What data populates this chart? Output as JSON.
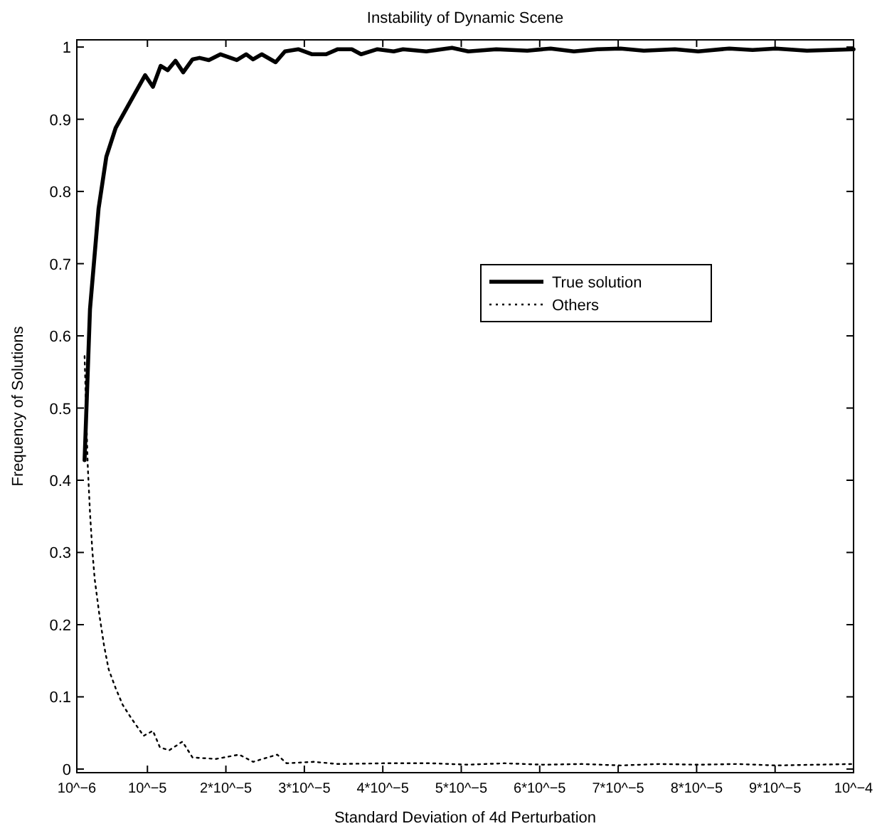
{
  "chart_data": {
    "type": "line",
    "title": "Instability of Dynamic Scene",
    "xlabel": "Standard Deviation of 4d Perturbation",
    "ylabel": "Frequency of Solutions",
    "xlim": [
      1e-06,
      0.0001
    ],
    "xticks": [
      {
        "value": 1e-06,
        "label": "10^−6"
      },
      {
        "value": 1e-05,
        "label": "10^−5"
      },
      {
        "value": 2e-05,
        "label": "2*10^−5"
      },
      {
        "value": 3e-05,
        "label": "3*10^−5"
      },
      {
        "value": 4e-05,
        "label": "4*10^−5"
      },
      {
        "value": 5e-05,
        "label": "5*10^−5"
      },
      {
        "value": 6e-05,
        "label": "6*10^−5"
      },
      {
        "value": 7e-05,
        "label": "7*10^−5"
      },
      {
        "value": 8e-05,
        "label": "8*10^−5"
      },
      {
        "value": 9e-05,
        "label": "9*10^−5"
      },
      {
        "value": 0.0001,
        "label": "10^−4"
      }
    ],
    "ylim": [
      -0.005,
      1.01
    ],
    "yticks": [
      0,
      0.1,
      0.2,
      0.3,
      0.4,
      0.5,
      0.6,
      0.7,
      0.8,
      0.9,
      1
    ],
    "grid": false,
    "legend": "center right",
    "series": [
      {
        "name": "True solution",
        "color": "#000000",
        "line_style": "solid",
        "x": [
          1.99e-06,
          2.68e-06,
          3.77e-06,
          4.76e-06,
          5.95e-06,
          7.44e-06,
          9.71e-06,
          1.07e-05,
          1.169e-05,
          1.258e-05,
          1.357e-05,
          1.456e-05,
          1.575e-05,
          1.664e-05,
          1.783e-05,
          1.932e-05,
          2.139e-05,
          2.258e-05,
          2.347e-05,
          2.456e-05,
          2.634e-05,
          2.753e-05,
          2.922e-05,
          3.1e-05,
          3.278e-05,
          3.426e-05,
          3.605e-05,
          3.723e-05,
          3.931e-05,
          4.139e-05,
          4.258e-05,
          4.555e-05,
          4.882e-05,
          5.09e-05,
          5.446e-05,
          5.842e-05,
          6.139e-05,
          6.436e-05,
          6.733e-05,
          7.03e-05,
          7.327e-05,
          7.723e-05,
          8.02e-05,
          8.416e-05,
          8.713e-05,
          9.01e-05,
          9.406e-05,
          9.703e-05,
          0.0001
        ],
        "values": [
          0.428,
          0.637,
          0.776,
          0.848,
          0.888,
          0.917,
          0.961,
          0.945,
          0.974,
          0.968,
          0.981,
          0.965,
          0.983,
          0.985,
          0.982,
          0.99,
          0.982,
          0.99,
          0.983,
          0.99,
          0.979,
          0.994,
          0.997,
          0.99,
          0.99,
          0.997,
          0.997,
          0.99,
          0.997,
          0.994,
          0.997,
          0.994,
          0.999,
          0.994,
          0.997,
          0.995,
          0.998,
          0.994,
          0.997,
          0.998,
          0.995,
          0.997,
          0.994,
          0.998,
          0.996,
          0.998,
          0.995,
          0.996,
          0.997
        ]
      },
      {
        "name": "Others",
        "color": "#000000",
        "line_style": "dotted",
        "x": [
          1.99e-06,
          2.39e-06,
          2.68e-06,
          2.98e-06,
          3.28e-06,
          3.87e-06,
          4.47e-06,
          5.06e-06,
          5.95e-06,
          6.84e-06,
          8.03e-06,
          9.51e-06,
          1.07e-05,
          1.159e-05,
          1.278e-05,
          1.446e-05,
          1.575e-05,
          1.872e-05,
          2.169e-05,
          2.347e-05,
          2.654e-05,
          2.773e-05,
          3.12e-05,
          3.426e-05,
          4.011e-05,
          4.614e-05,
          5.09e-05,
          5.545e-05,
          6.04e-05,
          6.535e-05,
          7.03e-05,
          7.525e-05,
          8.02e-05,
          8.515e-05,
          9.01e-05,
          9.505e-05,
          0.0001
        ],
        "values": [
          0.572,
          0.421,
          0.355,
          0.302,
          0.263,
          0.214,
          0.171,
          0.138,
          0.112,
          0.089,
          0.069,
          0.046,
          0.053,
          0.03,
          0.026,
          0.038,
          0.016,
          0.014,
          0.02,
          0.01,
          0.02,
          0.008,
          0.01,
          0.007,
          0.008,
          0.008,
          0.006,
          0.008,
          0.006,
          0.007,
          0.005,
          0.007,
          0.006,
          0.007,
          0.005,
          0.006,
          0.007
        ]
      }
    ]
  }
}
